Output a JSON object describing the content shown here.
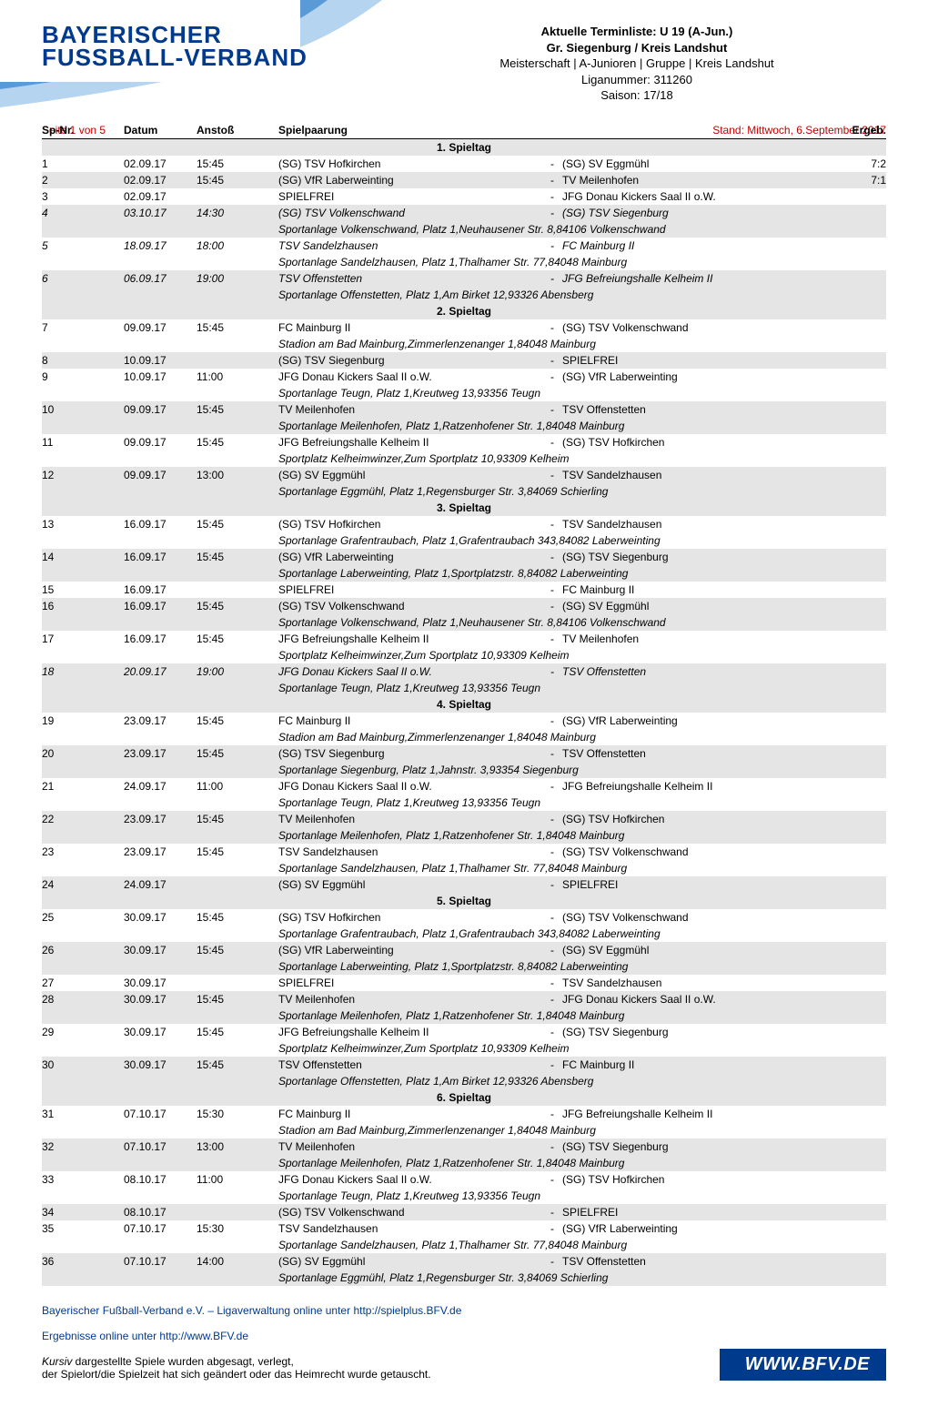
{
  "colors": {
    "brand": "#003a8c",
    "accent_red": "#c00000",
    "row_alt_bg": "#e5e5e5",
    "swoosh_light": "#b5d4f0",
    "swoosh_mid": "#5a9ad6",
    "swoosh_dark": "#003a8c",
    "text": "#000000",
    "bg": "#ffffff"
  },
  "logo": {
    "line1": "BAYERISCHER",
    "line2": "FUSSBALL-VERBAND"
  },
  "header": {
    "line1": "Aktuelle Terminliste: U 19 (A-Jun.)",
    "line2": "Gr. Siegenburg / Kreis Landshut",
    "line3": "Meisterschaft | A-Junioren | Gruppe | Kreis Landshut",
    "line4": "Liganummer: 311260",
    "line5": "Saison: 17/18"
  },
  "status": {
    "page": "Seite 1 von 5",
    "stand": "Stand: Mittwoch, 6.September 2017"
  },
  "columns": {
    "nr": "Sp-Nr.",
    "date": "Datum",
    "time": "Anstoß",
    "pair": "Spielpaarung",
    "res": "Ergeb."
  },
  "matchdays": [
    {
      "title": "1. Spieltag",
      "rows": [
        {
          "nr": "1",
          "date": "02.09.17",
          "time": "15:45",
          "home": "(SG) TSV Hofkirchen",
          "away": "(SG) SV Eggmühl",
          "res": "7:2",
          "alt": false
        },
        {
          "nr": "2",
          "date": "02.09.17",
          "time": "15:45",
          "home": "(SG) VfR Laberweinting",
          "away": "TV Meilenhofen",
          "res": "7:1",
          "alt": true
        },
        {
          "nr": "3",
          "date": "02.09.17",
          "time": "",
          "home": "SPIELFREI",
          "away": "JFG Donau Kickers Saal II o.W.",
          "res": "",
          "alt": false
        },
        {
          "nr": "4",
          "date": "03.10.17",
          "time": "14:30",
          "home": "(SG) TSV Volkenschwand",
          "away": "(SG) TSV Siegenburg",
          "res": "",
          "alt": true,
          "italic": true,
          "venue": "Sportanlage Volkenschwand, Platz 1,Neuhausener Str. 8,84106 Volkenschwand"
        },
        {
          "nr": "5",
          "date": "18.09.17",
          "time": "18:00",
          "home": "TSV Sandelzhausen",
          "away": "FC Mainburg II",
          "res": "",
          "alt": false,
          "italic": true,
          "venue": "Sportanlage Sandelzhausen, Platz 1,Thalhamer Str. 77,84048 Mainburg"
        },
        {
          "nr": "6",
          "date": "06.09.17",
          "time": "19:00",
          "home": "TSV Offenstetten",
          "away": "JFG Befreiungshalle Kelheim II",
          "res": "",
          "alt": true,
          "italic": true,
          "venue": "Sportanlage Offenstetten, Platz 1,Am Birket 12,93326 Abensberg"
        }
      ]
    },
    {
      "title": "2. Spieltag",
      "rows": [
        {
          "nr": "7",
          "date": "09.09.17",
          "time": "15:45",
          "home": "FC Mainburg II",
          "away": "(SG) TSV Volkenschwand",
          "res": "",
          "alt": false,
          "venue": "Stadion am Bad Mainburg,Zimmerlenzenanger 1,84048 Mainburg"
        },
        {
          "nr": "8",
          "date": "10.09.17",
          "time": "",
          "home": "(SG) TSV Siegenburg",
          "away": "SPIELFREI",
          "res": "",
          "alt": true
        },
        {
          "nr": "9",
          "date": "10.09.17",
          "time": "11:00",
          "home": "JFG Donau Kickers Saal II o.W.",
          "away": "(SG) VfR Laberweinting",
          "res": "",
          "alt": false,
          "venue": "Sportanlage Teugn, Platz 1,Kreutweg 13,93356 Teugn"
        },
        {
          "nr": "10",
          "date": "09.09.17",
          "time": "15:45",
          "home": "TV Meilenhofen",
          "away": "TSV Offenstetten",
          "res": "",
          "alt": true,
          "venue": "Sportanlage Meilenhofen, Platz 1,Ratzenhofener Str. 1,84048 Mainburg"
        },
        {
          "nr": "11",
          "date": "09.09.17",
          "time": "15:45",
          "home": "JFG Befreiungshalle Kelheim II",
          "away": "(SG) TSV Hofkirchen",
          "res": "",
          "alt": false,
          "venue": "Sportplatz Kelheimwinzer,Zum Sportplatz 10,93309 Kelheim"
        },
        {
          "nr": "12",
          "date": "09.09.17",
          "time": "13:00",
          "home": "(SG) SV Eggmühl",
          "away": "TSV Sandelzhausen",
          "res": "",
          "alt": true,
          "venue": "Sportanlage Eggmühl, Platz 1,Regensburger Str. 3,84069 Schierling"
        }
      ]
    },
    {
      "title": "3. Spieltag",
      "rows": [
        {
          "nr": "13",
          "date": "16.09.17",
          "time": "15:45",
          "home": "(SG) TSV Hofkirchen",
          "away": "TSV Sandelzhausen",
          "res": "",
          "alt": false,
          "venue": "Sportanlage Grafentraubach, Platz 1,Grafentraubach 343,84082 Laberweinting"
        },
        {
          "nr": "14",
          "date": "16.09.17",
          "time": "15:45",
          "home": "(SG) VfR Laberweinting",
          "away": "(SG) TSV Siegenburg",
          "res": "",
          "alt": true,
          "venue": "Sportanlage Laberweinting, Platz 1,Sportplatzstr. 8,84082 Laberweinting"
        },
        {
          "nr": "15",
          "date": "16.09.17",
          "time": "",
          "home": "SPIELFREI",
          "away": "FC Mainburg II",
          "res": "",
          "alt": false
        },
        {
          "nr": "16",
          "date": "16.09.17",
          "time": "15:45",
          "home": "(SG) TSV Volkenschwand",
          "away": "(SG) SV Eggmühl",
          "res": "",
          "alt": true,
          "venue": "Sportanlage Volkenschwand, Platz 1,Neuhausener Str. 8,84106 Volkenschwand"
        },
        {
          "nr": "17",
          "date": "16.09.17",
          "time": "15:45",
          "home": "JFG Befreiungshalle Kelheim II",
          "away": "TV Meilenhofen",
          "res": "",
          "alt": false,
          "venue": "Sportplatz Kelheimwinzer,Zum Sportplatz 10,93309 Kelheim"
        },
        {
          "nr": "18",
          "date": "20.09.17",
          "time": "19:00",
          "home": "JFG Donau Kickers Saal II o.W.",
          "away": "TSV Offenstetten",
          "res": "",
          "alt": true,
          "italic": true,
          "venue": "Sportanlage Teugn, Platz 1,Kreutweg 13,93356 Teugn"
        }
      ]
    },
    {
      "title": "4. Spieltag",
      "rows": [
        {
          "nr": "19",
          "date": "23.09.17",
          "time": "15:45",
          "home": "FC Mainburg II",
          "away": "(SG) VfR Laberweinting",
          "res": "",
          "alt": false,
          "venue": "Stadion am Bad Mainburg,Zimmerlenzenanger 1,84048 Mainburg"
        },
        {
          "nr": "20",
          "date": "23.09.17",
          "time": "15:45",
          "home": "(SG) TSV Siegenburg",
          "away": "TSV Offenstetten",
          "res": "",
          "alt": true,
          "venue": "Sportanlage Siegenburg, Platz 1,Jahnstr. 3,93354 Siegenburg"
        },
        {
          "nr": "21",
          "date": "24.09.17",
          "time": "11:00",
          "home": "JFG Donau Kickers Saal II o.W.",
          "away": "JFG Befreiungshalle Kelheim II",
          "res": "",
          "alt": false,
          "venue": "Sportanlage Teugn, Platz 1,Kreutweg 13,93356 Teugn"
        },
        {
          "nr": "22",
          "date": "23.09.17",
          "time": "15:45",
          "home": "TV Meilenhofen",
          "away": "(SG) TSV Hofkirchen",
          "res": "",
          "alt": true,
          "venue": "Sportanlage Meilenhofen, Platz 1,Ratzenhofener Str. 1,84048 Mainburg"
        },
        {
          "nr": "23",
          "date": "23.09.17",
          "time": "15:45",
          "home": "TSV Sandelzhausen",
          "away": "(SG) TSV Volkenschwand",
          "res": "",
          "alt": false,
          "venue": "Sportanlage Sandelzhausen, Platz 1,Thalhamer Str. 77,84048 Mainburg"
        },
        {
          "nr": "24",
          "date": "24.09.17",
          "time": "",
          "home": "(SG) SV Eggmühl",
          "away": "SPIELFREI",
          "res": "",
          "alt": true
        }
      ]
    },
    {
      "title": "5. Spieltag",
      "rows": [
        {
          "nr": "25",
          "date": "30.09.17",
          "time": "15:45",
          "home": "(SG) TSV Hofkirchen",
          "away": "(SG) TSV Volkenschwand",
          "res": "",
          "alt": false,
          "venue": "Sportanlage Grafentraubach, Platz 1,Grafentraubach 343,84082 Laberweinting"
        },
        {
          "nr": "26",
          "date": "30.09.17",
          "time": "15:45",
          "home": "(SG) VfR Laberweinting",
          "away": "(SG) SV Eggmühl",
          "res": "",
          "alt": true,
          "venue": "Sportanlage Laberweinting, Platz 1,Sportplatzstr. 8,84082 Laberweinting"
        },
        {
          "nr": "27",
          "date": "30.09.17",
          "time": "",
          "home": "SPIELFREI",
          "away": "TSV Sandelzhausen",
          "res": "",
          "alt": false
        },
        {
          "nr": "28",
          "date": "30.09.17",
          "time": "15:45",
          "home": "TV Meilenhofen",
          "away": "JFG Donau Kickers Saal II o.W.",
          "res": "",
          "alt": true,
          "venue": "Sportanlage Meilenhofen, Platz 1,Ratzenhofener Str. 1,84048 Mainburg"
        },
        {
          "nr": "29",
          "date": "30.09.17",
          "time": "15:45",
          "home": "JFG Befreiungshalle Kelheim II",
          "away": "(SG) TSV Siegenburg",
          "res": "",
          "alt": false,
          "venue": "Sportplatz Kelheimwinzer,Zum Sportplatz 10,93309 Kelheim"
        },
        {
          "nr": "30",
          "date": "30.09.17",
          "time": "15:45",
          "home": "TSV Offenstetten",
          "away": "FC Mainburg II",
          "res": "",
          "alt": true,
          "venue": "Sportanlage Offenstetten, Platz 1,Am Birket 12,93326 Abensberg"
        }
      ]
    },
    {
      "title": "6. Spieltag",
      "rows": [
        {
          "nr": "31",
          "date": "07.10.17",
          "time": "15:30",
          "home": "FC Mainburg II",
          "away": "JFG Befreiungshalle Kelheim II",
          "res": "",
          "alt": false,
          "venue": "Stadion am Bad Mainburg,Zimmerlenzenanger 1,84048 Mainburg"
        },
        {
          "nr": "32",
          "date": "07.10.17",
          "time": "13:00",
          "home": "TV Meilenhofen",
          "away": "(SG) TSV Siegenburg",
          "res": "",
          "alt": true,
          "venue": "Sportanlage Meilenhofen, Platz 1,Ratzenhofener Str. 1,84048 Mainburg"
        },
        {
          "nr": "33",
          "date": "08.10.17",
          "time": "11:00",
          "home": "JFG Donau Kickers Saal II o.W.",
          "away": "(SG) TSV Hofkirchen",
          "res": "",
          "alt": false,
          "venue": "Sportanlage Teugn, Platz 1,Kreutweg 13,93356 Teugn"
        },
        {
          "nr": "34",
          "date": "08.10.17",
          "time": "",
          "home": "(SG) TSV Volkenschwand",
          "away": "SPIELFREI",
          "res": "",
          "alt": true
        },
        {
          "nr": "35",
          "date": "07.10.17",
          "time": "15:30",
          "home": "TSV Sandelzhausen",
          "away": "(SG) VfR Laberweinting",
          "res": "",
          "alt": false,
          "venue": "Sportanlage Sandelzhausen, Platz 1,Thalhamer Str. 77,84048 Mainburg"
        },
        {
          "nr": "36",
          "date": "07.10.17",
          "time": "14:00",
          "home": "(SG) SV Eggmühl",
          "away": "TSV Offenstetten",
          "res": "",
          "alt": true,
          "venue": "Sportanlage Eggmühl, Platz 1,Regensburger Str. 3,84069 Schierling"
        }
      ]
    }
  ],
  "footer": {
    "line1_pre": "Bayerischer Fußball-Verband e.V. – Ligaverwaltung online unter ",
    "line1_url": "http://spielplus.BFV.de",
    "line2_pre": "Ergebnisse online unter ",
    "line2_url": "http://www.BFV.de",
    "note_it": "Kursiv",
    "note_rest1": " dargestellte Spiele wurden abgesagt, verlegt,",
    "note_rest2": "der Spielort/die Spielzeit hat sich geändert oder das Heimrecht wurde getauscht.",
    "logo": "WWW.BFV.DE"
  }
}
